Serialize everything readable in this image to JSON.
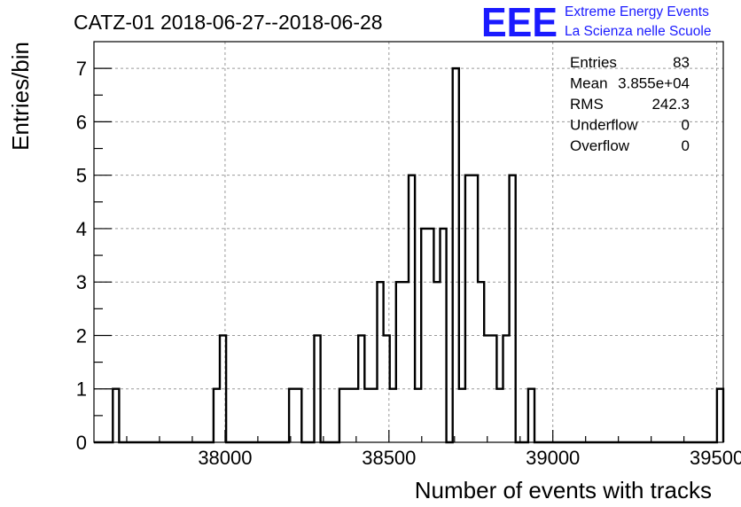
{
  "title": "CATZ-01 2018-06-27--2018-06-28",
  "logo": {
    "mark": "EEE",
    "line1": "Extreme Energy Events",
    "line2": "La Scienza nelle Scuole",
    "color": "#1a1aff"
  },
  "stats": {
    "rows": [
      {
        "label": "Entries",
        "value": "83"
      },
      {
        "label": "Mean",
        "value": "3.855e+04"
      },
      {
        "label": "RMS",
        "value": "242.3"
      },
      {
        "label": "Underflow",
        "value": "0"
      },
      {
        "label": "Overflow",
        "value": "0"
      }
    ]
  },
  "chart_data": {
    "type": "histogram",
    "xlabel": "Number of events with tracks",
    "ylabel": "Entries/bin",
    "xlim": [
      37600,
      39520
    ],
    "ylim": [
      0,
      7.5
    ],
    "grid": true,
    "x_ticks": [
      38000,
      38500,
      39000,
      39500
    ],
    "y_ticks": [
      0,
      1,
      2,
      3,
      4,
      5,
      6,
      7
    ],
    "bin_width": 19.2,
    "counts": [
      0,
      0,
      0,
      1,
      0,
      0,
      0,
      0,
      0,
      0,
      0,
      0,
      0,
      0,
      0,
      0,
      0,
      0,
      0,
      1,
      2,
      0,
      0,
      0,
      0,
      0,
      0,
      0,
      0,
      0,
      0,
      1,
      1,
      0,
      0,
      2,
      0,
      0,
      0,
      1,
      1,
      1,
      2,
      1,
      1,
      3,
      2,
      1,
      3,
      3,
      5,
      1,
      4,
      4,
      3,
      4,
      0,
      7,
      1,
      5,
      5,
      3,
      2,
      2,
      1,
      2,
      5,
      0,
      0,
      1,
      0,
      0,
      0,
      0,
      0,
      0,
      0,
      0,
      0,
      0,
      0,
      0,
      0,
      0,
      0,
      0,
      0,
      0,
      0,
      0,
      0,
      0,
      0,
      0,
      0,
      0,
      0,
      0,
      0,
      1
    ]
  }
}
